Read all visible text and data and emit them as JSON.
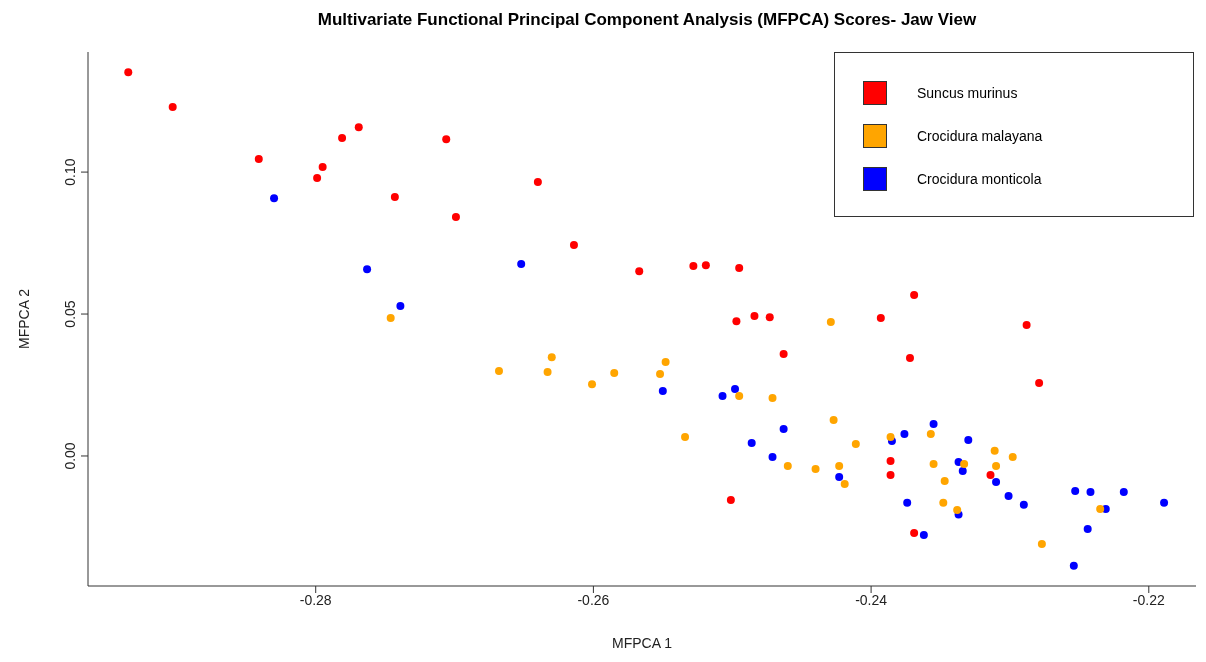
{
  "chart_data": {
    "type": "scatter",
    "title": "Multivariate Functional Principal Component Analysis (MFPCA) Scores- Jaw View",
    "xlabel": "MFPCA 1",
    "ylabel": "MFPCA 2",
    "xlim": [
      -0.2964,
      -0.2166
    ],
    "ylim": [
      -0.0458,
      0.1423
    ],
    "xticks": [
      -0.28,
      -0.26,
      -0.24,
      -0.22
    ],
    "yticks": [
      {
        "value": 0,
        "label": "0.00"
      },
      {
        "value": 0.05,
        "label": "0.05"
      },
      {
        "value": 0.1,
        "label": "0.10"
      }
    ],
    "grid": false,
    "legend": "top right",
    "marker": "circle",
    "series": [
      {
        "name": "Suncus murinus",
        "color": "#ff0000",
        "x": [
          -0.2935,
          -0.2903,
          -0.2841,
          -0.2799,
          -0.2795,
          -0.2781,
          -0.2769,
          -0.2743,
          -0.2706,
          -0.2699,
          -0.264,
          -0.2614,
          -0.2567,
          -0.2528,
          -0.2519,
          -0.2495,
          -0.2497,
          -0.2484,
          -0.2473,
          -0.2463,
          -0.2393,
          -0.2369,
          -0.2372,
          -0.2501,
          -0.2386,
          -0.2386,
          -0.2369,
          -0.2314,
          -0.2288,
          -0.2279
        ],
        "values": [
          0.1352,
          0.1229,
          0.1046,
          0.0979,
          0.1018,
          0.112,
          0.1158,
          0.0912,
          0.1116,
          0.0842,
          0.0965,
          0.0743,
          0.0651,
          0.0669,
          0.0672,
          0.0662,
          0.0475,
          0.0493,
          0.0489,
          0.0359,
          0.0486,
          0.0567,
          0.0345,
          -0.0155,
          -0.0018,
          -0.0067,
          -0.0271,
          -0.0067,
          0.0461,
          0.0257
        ]
      },
      {
        "name": "Crocidura malayana",
        "color": "#ffa500",
        "x": [
          -0.2746,
          -0.2668,
          -0.263,
          -0.2633,
          -0.2601,
          -0.2585,
          -0.2552,
          -0.2548,
          -0.2534,
          -0.2495,
          -0.2471,
          -0.2429,
          -0.2427,
          -0.2411,
          -0.246,
          -0.244,
          -0.2423,
          -0.2419,
          -0.2386,
          -0.2357,
          -0.2355,
          -0.2347,
          -0.2348,
          -0.2338,
          -0.2333,
          -0.2311,
          -0.2298,
          -0.231,
          -0.2235,
          -0.2277
        ],
        "values": [
          0.0486,
          0.0299,
          0.0348,
          0.0296,
          0.0253,
          0.0292,
          0.0289,
          0.0331,
          0.0067,
          0.0211,
          0.0204,
          0.0472,
          0.0127,
          0.0042,
          -0.0035,
          -0.0046,
          -0.0035,
          -0.0099,
          0.0067,
          0.0077,
          -0.0028,
          -0.0088,
          -0.0165,
          -0.019,
          -0.0028,
          0.0018,
          -0.0004,
          -0.0035,
          -0.0187,
          -0.031
        ]
      },
      {
        "name": "Crocidura monticola",
        "color": "#0000ff",
        "x": [
          -0.283,
          -0.2763,
          -0.2739,
          -0.2652,
          -0.255,
          -0.2507,
          -0.2498,
          -0.2486,
          -0.2471,
          -0.2463,
          -0.2423,
          -0.2385,
          -0.2376,
          -0.2355,
          -0.233,
          -0.2337,
          -0.2334,
          -0.231,
          -0.2301,
          -0.229,
          -0.2374,
          -0.2337,
          -0.2362,
          -0.2253,
          -0.2242,
          -0.2218,
          -0.2189,
          -0.2231,
          -0.2244,
          -0.2254
        ],
        "values": [
          0.0908,
          0.0658,
          0.0528,
          0.0676,
          0.0229,
          0.0211,
          0.0236,
          0.0046,
          -0.0004,
          0.0095,
          -0.0074,
          0.0053,
          0.0077,
          0.0113,
          0.0056,
          -0.0021,
          -0.0053,
          -0.0092,
          -0.0141,
          -0.0172,
          -0.0165,
          -0.0206,
          -0.0278,
          -0.0123,
          -0.0127,
          -0.0127,
          -0.0165,
          -0.0187,
          -0.0257,
          -0.0387
        ]
      }
    ]
  }
}
